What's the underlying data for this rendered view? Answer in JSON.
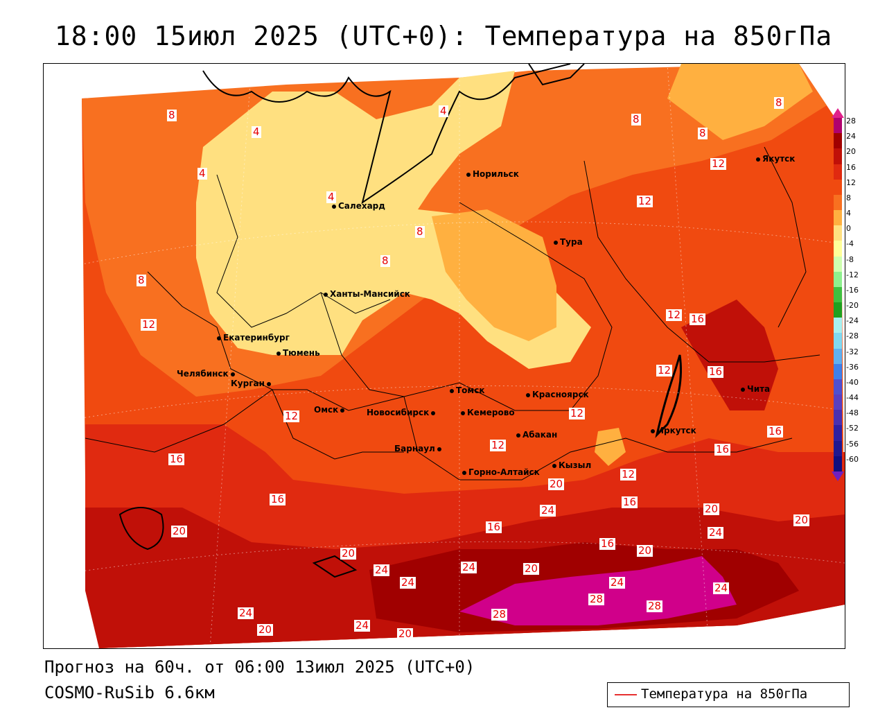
{
  "title": "18:00 15июл 2025 (UTC+0): Температура на 850гПа",
  "footer": {
    "forecast": "Прогноз на 60ч. от 06:00 13июл 2025 (UTC+0)",
    "model": "COSMO-RuSib 6.6км"
  },
  "legend": {
    "label": "Температура на 850гПа",
    "line_color": "#e63030"
  },
  "colorbar": {
    "ticks": [
      "28",
      "24",
      "20",
      "16",
      "12",
      "8",
      "4",
      "0",
      "-4",
      "-8",
      "-12",
      "-16",
      "-20",
      "-24",
      "-28",
      "-32",
      "-36",
      "-40",
      "-44",
      "-48",
      "-52",
      "-56",
      "-60"
    ],
    "colors": [
      "#b0006e",
      "#a00000",
      "#c01008",
      "#e02a10",
      "#f04a10",
      "#f87020",
      "#ffb040",
      "#ffe080",
      "#ffff99",
      "#cfffaf",
      "#8ef08e",
      "#40c040",
      "#20a020",
      "#a8f0f0",
      "#80d8f0",
      "#60b0f0",
      "#4080e8",
      "#5050d0",
      "#5a40c0",
      "#4a30b0",
      "#3020a0",
      "#201890",
      "#100f80"
    ]
  },
  "cities": [
    "Норильск",
    "Якутск",
    "Салехард",
    "Тура",
    "Ханты-Мансийск",
    "Екатеринбург",
    "Тюмень",
    "Челябинск",
    "Курган",
    "Омск",
    "Новосибирск",
    "Томск",
    "Красноярск",
    "Кемерово",
    "Барнаул",
    "Абакан",
    "Горно-Алтайск",
    "Кызыл",
    "Иркутск",
    "Чита"
  ],
  "isotherm_labels": [
    "8",
    "4",
    "4",
    "8",
    "4",
    "4",
    "8",
    "8",
    "8",
    "8",
    "8",
    "12",
    "12",
    "12",
    "12",
    "12",
    "16",
    "12",
    "16",
    "16",
    "12",
    "12",
    "16",
    "16",
    "12",
    "16",
    "20",
    "20",
    "16",
    "24",
    "20",
    "16",
    "20",
    "24",
    "20",
    "24",
    "20",
    "24",
    "24",
    "24",
    "20",
    "24",
    "24",
    "28",
    "28",
    "28",
    "20",
    "20",
    "16",
    "24"
  ]
}
